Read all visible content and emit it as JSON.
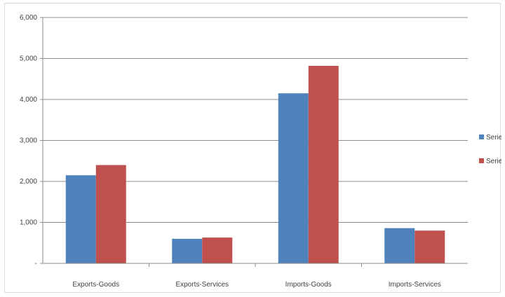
{
  "chart_data": {
    "type": "bar",
    "title": "",
    "xlabel": "",
    "ylabel": "",
    "categories": [
      "Exports-Goods",
      "Exports-Services",
      "Imports-Goods",
      "Imports-Services"
    ],
    "series": [
      {
        "name": "Series",
        "color": "#4f81bd",
        "values": [
          2150,
          600,
          4150,
          860
        ]
      },
      {
        "name": "Series",
        "color": "#c0504d",
        "values": [
          2400,
          630,
          4820,
          800
        ]
      }
    ],
    "ylim": [
      0,
      6000
    ],
    "yticks": [
      0,
      1000,
      2000,
      3000,
      4000,
      5000,
      6000
    ],
    "ytick_labels": [
      "-",
      "1,000",
      "2,000",
      "3,000",
      "4,000",
      "5,000",
      "6,000"
    ],
    "grid": true,
    "legend_position": "right"
  }
}
